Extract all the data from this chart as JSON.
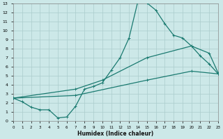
{
  "xlabel": "Humidex (Indice chaleur)",
  "bg_color": "#cce8e8",
  "grid_color": "#aacccc",
  "line_color": "#1a7a70",
  "xlim": [
    0,
    23
  ],
  "ylim": [
    0,
    13
  ],
  "xticks": [
    0,
    1,
    2,
    3,
    4,
    5,
    6,
    7,
    8,
    9,
    10,
    11,
    12,
    13,
    14,
    15,
    16,
    17,
    18,
    19,
    20,
    21,
    22,
    23
  ],
  "yticks": [
    0,
    1,
    2,
    3,
    4,
    5,
    6,
    7,
    8,
    9,
    10,
    11,
    12,
    13
  ],
  "line1_x": [
    0,
    1,
    2,
    3,
    4,
    5,
    6,
    7,
    8,
    9,
    10,
    11,
    12,
    13,
    14,
    15,
    16,
    17,
    18,
    19,
    20,
    21,
    22,
    23
  ],
  "line1_y": [
    2.5,
    2.1,
    1.5,
    1.2,
    1.2,
    0.3,
    0.4,
    1.6,
    3.5,
    3.8,
    4.2,
    5.6,
    7.0,
    9.2,
    13.3,
    13.1,
    12.3,
    10.8,
    9.5,
    9.2,
    8.3,
    7.2,
    6.3,
    5.2
  ],
  "line2_x": [
    0,
    7,
    10,
    15,
    20,
    22,
    23
  ],
  "line2_y": [
    2.5,
    3.5,
    4.5,
    7.0,
    8.3,
    7.5,
    5.3
  ],
  "line3_x": [
    0,
    7,
    15,
    20,
    23
  ],
  "line3_y": [
    2.5,
    2.8,
    4.5,
    5.5,
    5.2
  ]
}
